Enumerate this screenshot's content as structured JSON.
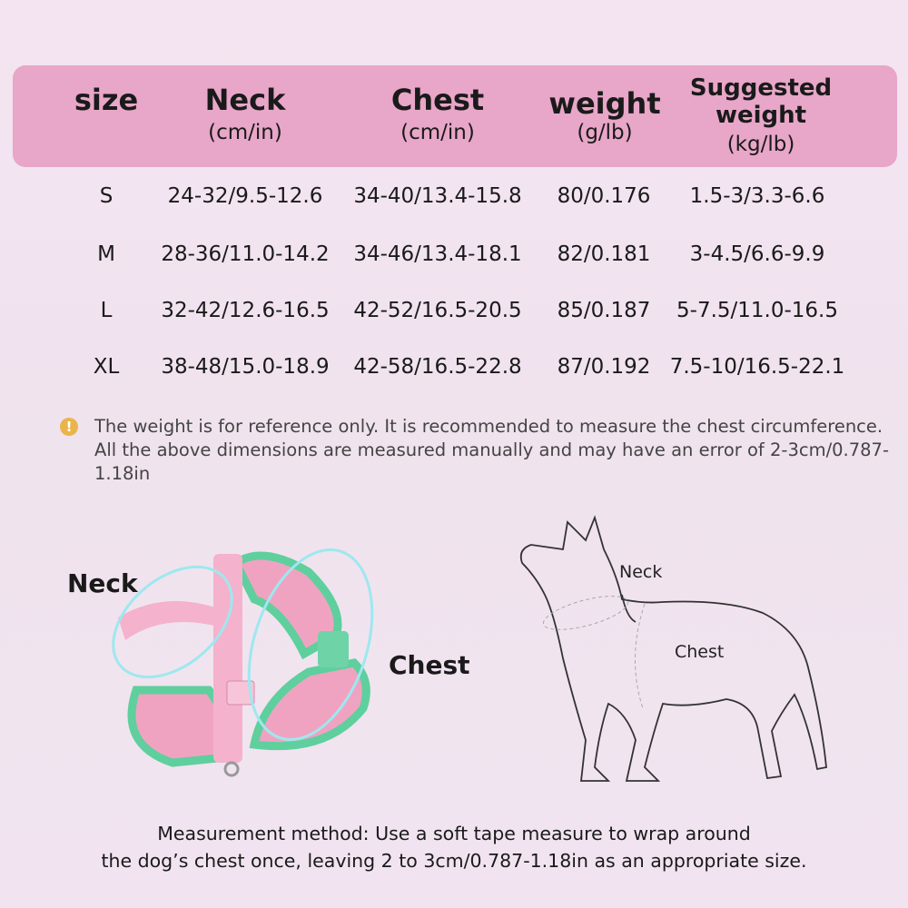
{
  "table": {
    "headers": [
      {
        "title": "size",
        "unit": ""
      },
      {
        "title": "Neck",
        "unit": "(cm/in)"
      },
      {
        "title": "Chest",
        "unit": "(cm/in)"
      },
      {
        "title": "weight",
        "unit": "(g/lb)"
      },
      {
        "title": "Suggested weight",
        "title_line1": "Suggested",
        "title_line2": "weight",
        "unit": "(kg/lb)"
      }
    ],
    "rows": [
      [
        "S",
        "24-32/9.5-12.6",
        "34-40/13.4-15.8",
        "80/0.176",
        "1.5-3/3.3-6.6"
      ],
      [
        "M",
        "28-36/11.0-14.2",
        "34-46/13.4-18.1",
        "82/0.181",
        "3-4.5/6.6-9.9"
      ],
      [
        "L",
        "32-42/12.6-16.5",
        "42-52/16.5-20.5",
        "85/0.187",
        "5-7.5/11.0-16.5"
      ],
      [
        "XL",
        "38-48/15.0-18.9",
        "42-58/16.5-22.8",
        "87/0.192",
        "7.5-10/16.5-22.1"
      ]
    ]
  },
  "note": {
    "icon": "warning-icon",
    "text": "The weight is for reference only. It is recommended to measure the chest circumference. All the above dimensions are measured manually and may have an error of 2-3cm/0.787-1.18in"
  },
  "harness_labels": {
    "neck": "Neck",
    "chest": "Chest"
  },
  "dog_labels": {
    "neck": "Neck",
    "chest": "Chest"
  },
  "method": {
    "line1": "Measurement method: Use a soft tape measure to wrap around",
    "line2": "the dog’s chest once, leaving 2 to 3cm/0.787-1.18in as an appropriate size."
  },
  "colors": {
    "header": "#e8a6c8",
    "harness_pink": "#f0a3c0",
    "harness_green": "#5fcf9e",
    "warning": "#e9b54b"
  }
}
